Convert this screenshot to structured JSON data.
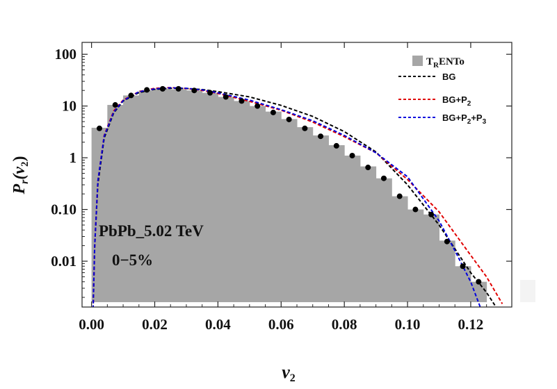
{
  "chart_data": {
    "type": "bar",
    "title": "",
    "xlabel": {
      "main": "v",
      "sub": "2"
    },
    "ylabel": {
      "main": "P",
      "sub_r": "r",
      "open": "(v",
      "sub_2": "2",
      "close": ")"
    },
    "xlim": [
      -0.003,
      0.133
    ],
    "ylim": [
      0.0013,
      170
    ],
    "yscale": "log",
    "grid": false,
    "legend_position": "top-right",
    "x_ticks": [
      {
        "value": 0.0,
        "label": "0.00"
      },
      {
        "value": 0.02,
        "label": "0.02"
      },
      {
        "value": 0.04,
        "label": "0.04"
      },
      {
        "value": 0.06,
        "label": "0.06"
      },
      {
        "value": 0.08,
        "label": "0.08"
      },
      {
        "value": 0.1,
        "label": "0.10"
      },
      {
        "value": 0.12,
        "label": "0.12"
      }
    ],
    "y_ticks": [
      {
        "value": 0.01,
        "label": "0.01"
      },
      {
        "value": 0.1,
        "label": "0.10"
      },
      {
        "value": 1,
        "label": "1"
      },
      {
        "value": 10,
        "label": "10"
      },
      {
        "value": 100,
        "label": "100"
      }
    ],
    "annotations": [
      "PbPb_5.02 TeV",
      "0−5%"
    ],
    "histogram": {
      "name": {
        "main": "T",
        "sub": "R",
        "rest": "ENTo"
      },
      "color": "#a6a6a6",
      "bin_width": 0.005,
      "bin_left_edges": [
        0.0,
        0.005,
        0.01,
        0.015,
        0.02,
        0.025,
        0.03,
        0.035,
        0.04,
        0.045,
        0.05,
        0.055,
        0.06,
        0.065,
        0.07,
        0.075,
        0.08,
        0.085,
        0.09,
        0.095,
        0.1,
        0.105,
        0.11,
        0.115,
        0.12
      ],
      "values": [
        3.8,
        10.5,
        16,
        20,
        21.5,
        21,
        20,
        18,
        15,
        12.5,
        10,
        7.8,
        5.6,
        3.9,
        2.7,
        1.75,
        1.1,
        0.68,
        0.4,
        0.18,
        0.1,
        0.08,
        0.025,
        0.008,
        0.004
      ]
    },
    "points": {
      "color": "#000000",
      "x": [
        0.0025,
        0.0075,
        0.0125,
        0.0175,
        0.0225,
        0.0275,
        0.0325,
        0.0375,
        0.0425,
        0.0475,
        0.0525,
        0.0575,
        0.0625,
        0.0675,
        0.0725,
        0.0775,
        0.0825,
        0.0875,
        0.0925,
        0.0975,
        0.1025,
        0.1075,
        0.1125,
        0.1175,
        0.1225
      ],
      "y": [
        3.7,
        10.5,
        16,
        20.5,
        21.5,
        21.5,
        20,
        18,
        15,
        12.5,
        10,
        7.5,
        5.5,
        3.7,
        2.6,
        1.7,
        1.1,
        0.65,
        0.4,
        0.18,
        0.1,
        0.08,
        0.024,
        0.008,
        0.004
      ]
    },
    "series": [
      {
        "name": "BG",
        "color": "#000000",
        "x": [
          0.0005,
          0.001,
          0.002,
          0.004,
          0.007,
          0.01,
          0.015,
          0.02,
          0.025,
          0.03,
          0.035,
          0.04,
          0.05,
          0.06,
          0.07,
          0.08,
          0.09,
          0.1,
          0.11,
          0.12,
          0.125,
          0.128
        ],
        "y": [
          0.0012,
          0.02,
          0.3,
          2.4,
          7.3,
          12.5,
          18.2,
          21,
          22,
          21.8,
          20.8,
          19,
          15,
          10.3,
          6.3,
          3.2,
          1.3,
          0.3,
          0.05,
          0.006,
          0.0025,
          0.0013
        ]
      },
      {
        "name": {
          "main": "BG+P",
          "sub": "2"
        },
        "color": "#e00000",
        "x": [
          0.0005,
          0.001,
          0.002,
          0.004,
          0.007,
          0.01,
          0.015,
          0.02,
          0.025,
          0.03,
          0.035,
          0.04,
          0.05,
          0.06,
          0.07,
          0.08,
          0.09,
          0.1,
          0.11,
          0.12,
          0.125,
          0.13
        ],
        "y": [
          0.0012,
          0.02,
          0.35,
          2.7,
          8,
          13,
          19,
          22,
          22.7,
          21.8,
          20,
          17.5,
          12.3,
          8.3,
          4.9,
          2.55,
          1.25,
          0.38,
          0.09,
          0.013,
          0.005,
          0.0015
        ]
      },
      {
        "name": {
          "main": "BG+P",
          "sub": "2",
          "mid": "+P",
          "sub2": "3"
        },
        "color": "#0000dd",
        "x": [
          0.0005,
          0.001,
          0.002,
          0.004,
          0.007,
          0.01,
          0.015,
          0.02,
          0.025,
          0.03,
          0.035,
          0.04,
          0.05,
          0.06,
          0.07,
          0.08,
          0.09,
          0.1,
          0.11,
          0.115,
          0.12,
          0.123
        ],
        "y": [
          0.0012,
          0.02,
          0.35,
          2.6,
          7.6,
          12.7,
          18.8,
          21.5,
          22.5,
          22,
          20.5,
          18,
          13,
          8.5,
          5.2,
          2.7,
          1.25,
          0.43,
          0.06,
          0.016,
          0.004,
          0.0013
        ]
      }
    ]
  }
}
